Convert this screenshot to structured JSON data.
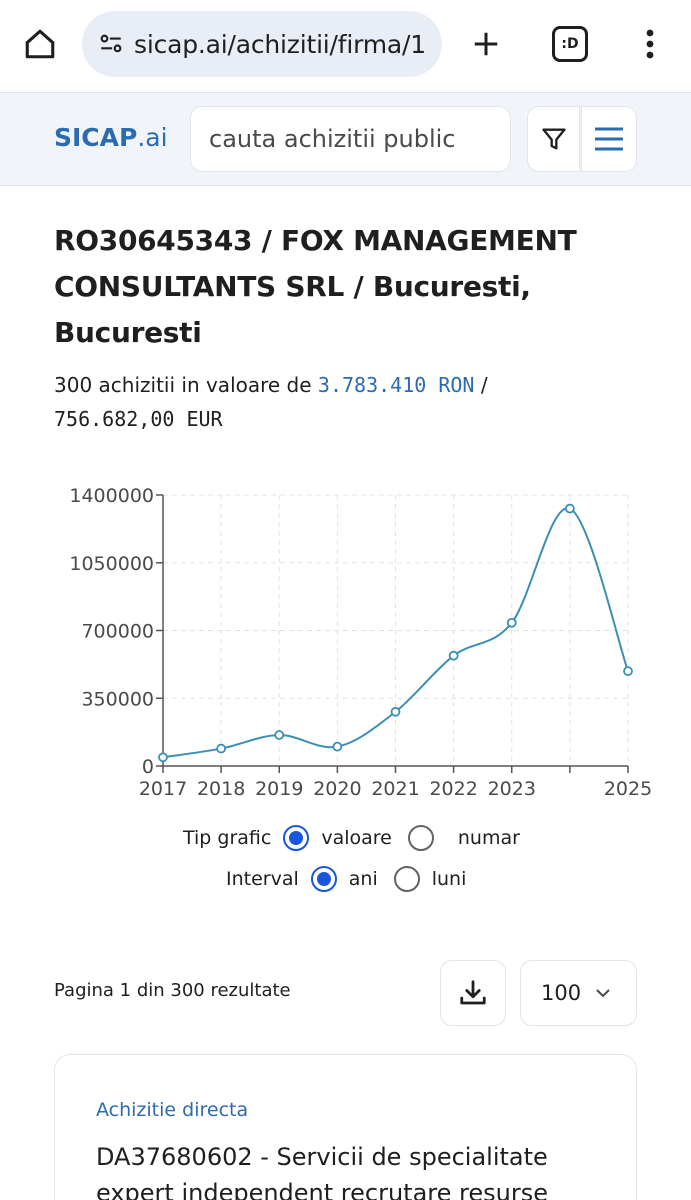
{
  "browser": {
    "url": "sicap.ai/achizitii/firma/1",
    "tabs_label": ":D"
  },
  "header": {
    "logo_main": "SICAP",
    "logo_suffix": ".ai",
    "search_placeholder": "cauta achizitii public"
  },
  "company": {
    "title": "RO30645343 / FOX MANAGEMENT CONSULTANTS SRL / Bucuresti, Bucuresti",
    "summary_prefix": "300 achizitii in valoare de",
    "value_ron": "3.783.410 RON",
    "separator": "/",
    "value_eur": "756.682,00 EUR"
  },
  "chart_data": {
    "type": "line",
    "x": [
      "2017",
      "2018",
      "2019",
      "2020",
      "2021",
      "2022",
      "2023",
      "2024",
      "2025"
    ],
    "x_tick_labels": [
      "2017",
      "2018",
      "2019",
      "2020",
      "2021",
      "2022",
      "2023",
      "",
      "2025"
    ],
    "values": [
      45000,
      90000,
      160000,
      100000,
      280000,
      570000,
      740000,
      1330000,
      490000
    ],
    "y_ticks": [
      "0",
      "350000",
      "700000",
      "1050000",
      "1400000"
    ],
    "ylim": [
      0,
      1400000
    ],
    "grid": true,
    "line_color": "#3b8fb5"
  },
  "controls": {
    "chart_type_label": "Tip grafic",
    "chart_type_options": [
      "valoare",
      "numar"
    ],
    "chart_type_selected": "valoare",
    "interval_label": "Interval",
    "interval_options": [
      "ani",
      "luni"
    ],
    "interval_selected": "ani"
  },
  "pagination": {
    "text": "Pagina 1 din 300 rezultate",
    "per_page": "100"
  },
  "results": [
    {
      "type": "Achizitie directa",
      "title": "DA37680602 - Servicii de specialitate expert independent recrutare resurse"
    }
  ]
}
